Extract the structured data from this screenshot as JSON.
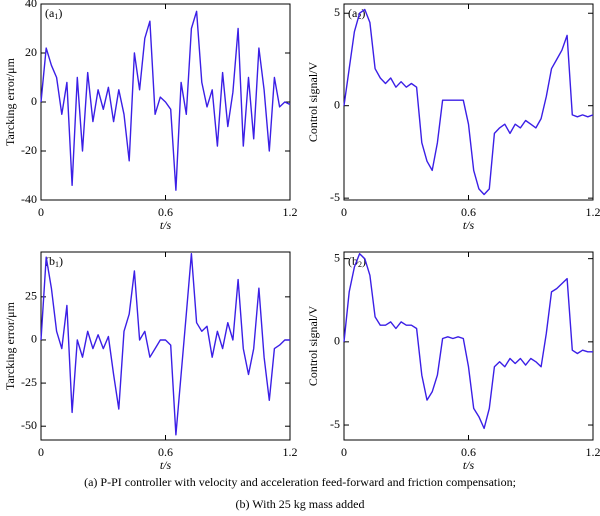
{
  "chart_data": [
    {
      "type": "line",
      "annotation": [
        "(a",
        "1",
        ")"
      ],
      "xlabel": "t/s",
      "ylabel": "Tarcking error/μm",
      "xlim": [
        0,
        1.2
      ],
      "xticks": [
        0,
        0.6,
        1.2
      ],
      "ylim": [
        -40,
        40
      ],
      "yticks": [
        -40,
        -20,
        0,
        20,
        40
      ],
      "color": "#3b1fe6",
      "x": [
        0,
        0.025,
        0.05,
        0.075,
        0.1,
        0.125,
        0.15,
        0.175,
        0.2,
        0.225,
        0.25,
        0.275,
        0.3,
        0.325,
        0.35,
        0.375,
        0.4,
        0.425,
        0.45,
        0.475,
        0.5,
        0.525,
        0.55,
        0.575,
        0.6,
        0.625,
        0.65,
        0.675,
        0.7,
        0.725,
        0.75,
        0.775,
        0.8,
        0.825,
        0.85,
        0.875,
        0.9,
        0.925,
        0.95,
        0.975,
        1.0,
        1.025,
        1.05,
        1.075,
        1.1,
        1.125,
        1.15,
        1.175,
        1.2
      ],
      "values": [
        0,
        22,
        15,
        10,
        -5,
        8,
        -34,
        10,
        -20,
        12,
        -8,
        5,
        -3,
        6,
        -8,
        5,
        -5,
        -24,
        20,
        5,
        26,
        33,
        -5,
        2,
        0,
        -3,
        -36,
        8,
        -5,
        30,
        37,
        8,
        -2,
        5,
        -18,
        12,
        -10,
        4,
        30,
        -18,
        10,
        -15,
        22,
        5,
        -20,
        10,
        -2,
        0,
        -1
      ]
    },
    {
      "type": "line",
      "annotation": [
        "(a",
        "2",
        ")"
      ],
      "xlabel": "t/s",
      "ylabel": "Control signal/V",
      "xlim": [
        0,
        1.2
      ],
      "xticks": [
        0,
        0.6,
        1.2
      ],
      "ylim": [
        -5.1,
        5.5
      ],
      "yticks": [
        -5,
        0,
        5
      ],
      "color": "#3b1fe6",
      "x": [
        0,
        0.025,
        0.05,
        0.075,
        0.1,
        0.125,
        0.15,
        0.175,
        0.2,
        0.225,
        0.25,
        0.275,
        0.3,
        0.325,
        0.35,
        0.375,
        0.4,
        0.425,
        0.45,
        0.475,
        0.5,
        0.525,
        0.55,
        0.575,
        0.6,
        0.625,
        0.65,
        0.675,
        0.7,
        0.725,
        0.75,
        0.775,
        0.8,
        0.825,
        0.85,
        0.875,
        0.9,
        0.925,
        0.95,
        0.975,
        1.0,
        1.025,
        1.05,
        1.075,
        1.1,
        1.125,
        1.15,
        1.175,
        1.2
      ],
      "values": [
        0,
        2,
        4,
        5,
        5.2,
        4.5,
        2,
        1.5,
        1.2,
        1.5,
        1,
        1.3,
        1,
        1.2,
        1,
        -2,
        -3,
        -3.5,
        -2,
        0.3,
        0.3,
        0.3,
        0.3,
        0.3,
        -1,
        -3.5,
        -4.5,
        -4.8,
        -4.5,
        -1.5,
        -1.2,
        -1,
        -1.5,
        -1,
        -1.2,
        -0.8,
        -1,
        -1.2,
        -0.7,
        0.5,
        2,
        2.5,
        3,
        3.8,
        -0.5,
        -0.6,
        -0.5,
        -0.6,
        -0.5
      ]
    },
    {
      "type": "line",
      "annotation": [
        "(b",
        "1",
        ")"
      ],
      "xlabel": "t/s",
      "ylabel": "Tarcking error/μm",
      "xlim": [
        0,
        1.2
      ],
      "xticks": [
        0,
        0.6,
        1.2
      ],
      "ylim": [
        -58,
        51
      ],
      "yticks": [
        -50,
        -25,
        0,
        25
      ],
      "color": "#3b1fe6",
      "x": [
        0,
        0.025,
        0.05,
        0.075,
        0.1,
        0.125,
        0.15,
        0.175,
        0.2,
        0.225,
        0.25,
        0.275,
        0.3,
        0.325,
        0.35,
        0.375,
        0.4,
        0.425,
        0.45,
        0.475,
        0.5,
        0.525,
        0.55,
        0.575,
        0.6,
        0.625,
        0.65,
        0.675,
        0.7,
        0.725,
        0.75,
        0.775,
        0.8,
        0.825,
        0.85,
        0.875,
        0.9,
        0.925,
        0.95,
        0.975,
        1.0,
        1.025,
        1.05,
        1.075,
        1.1,
        1.125,
        1.15,
        1.175,
        1.2
      ],
      "values": [
        0,
        48,
        30,
        5,
        -5,
        20,
        -42,
        0,
        -10,
        5,
        -5,
        3,
        -5,
        2,
        -20,
        -40,
        5,
        15,
        40,
        0,
        5,
        -10,
        -5,
        0,
        0,
        -3,
        -55,
        -20,
        15,
        50,
        10,
        5,
        8,
        -10,
        5,
        -5,
        10,
        0,
        35,
        -5,
        -20,
        -5,
        30,
        -10,
        -35,
        -5,
        -3,
        0,
        0
      ]
    },
    {
      "type": "line",
      "annotation": [
        "(b",
        "2",
        ")"
      ],
      "xlabel": "t/s",
      "ylabel": "Control signal/V",
      "xlim": [
        0,
        1.2
      ],
      "xticks": [
        0,
        0.6,
        1.2
      ],
      "ylim": [
        -5.9,
        5.4
      ],
      "yticks": [
        -5,
        0,
        5
      ],
      "color": "#3b1fe6",
      "x": [
        0,
        0.025,
        0.05,
        0.075,
        0.1,
        0.125,
        0.15,
        0.175,
        0.2,
        0.225,
        0.25,
        0.275,
        0.3,
        0.325,
        0.35,
        0.375,
        0.4,
        0.425,
        0.45,
        0.475,
        0.5,
        0.525,
        0.55,
        0.575,
        0.6,
        0.625,
        0.65,
        0.675,
        0.7,
        0.725,
        0.75,
        0.775,
        0.8,
        0.825,
        0.85,
        0.875,
        0.9,
        0.925,
        0.95,
        0.975,
        1.0,
        1.025,
        1.05,
        1.075,
        1.1,
        1.125,
        1.15,
        1.175,
        1.2
      ],
      "values": [
        0,
        3,
        4.5,
        5.3,
        5,
        4,
        1.5,
        1,
        1,
        1.2,
        0.8,
        1.2,
        1,
        1,
        0.8,
        -2,
        -3.5,
        -3,
        -2,
        0.2,
        0.3,
        0.2,
        0.3,
        0.2,
        -1.5,
        -4,
        -4.5,
        -5.2,
        -4,
        -1.5,
        -1.2,
        -1.5,
        -1,
        -1.3,
        -1,
        -1.4,
        -1,
        -1.2,
        -1.5,
        0.5,
        3,
        3.2,
        3.5,
        3.8,
        -0.5,
        -0.7,
        -0.5,
        -0.6,
        -0.6
      ]
    }
  ],
  "caption": [
    "(a) P-PI controller with velocity and acceleration feed-forward and friction compensation;",
    "(b) With 25 kg mass added"
  ]
}
